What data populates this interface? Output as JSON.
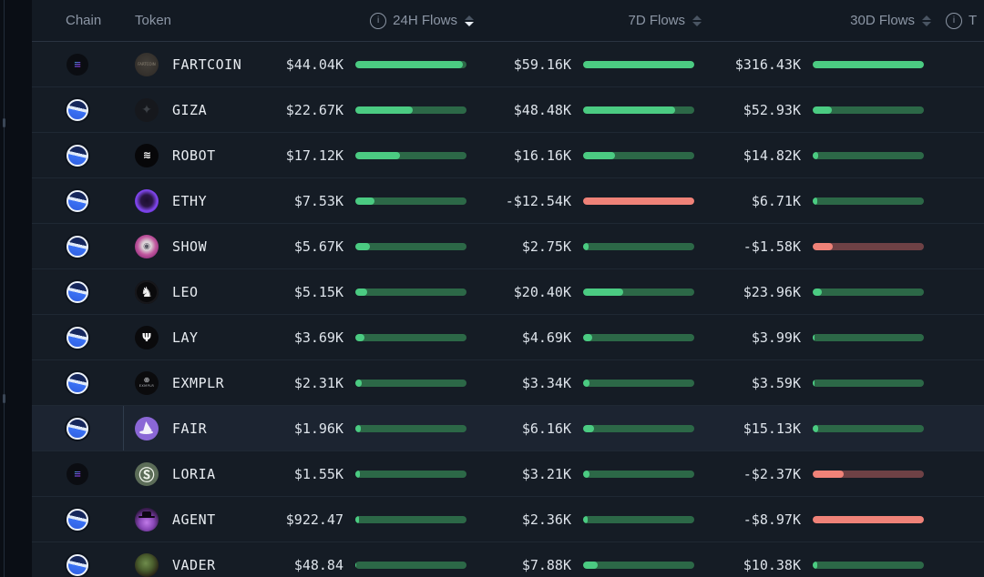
{
  "header": {
    "chain": "Chain",
    "token": "Token",
    "h24": "24H Flows",
    "d7": "7D Flows",
    "d30": "30D Flows",
    "right_overflow": "T"
  },
  "colors": {
    "positive_fill": "#4bcb82",
    "positive_track": "#2c6847",
    "negative_fill": "#ef8278",
    "negative_track": "#6e4145",
    "row_bg": "#151c25",
    "row_highlight_bg": "#1c2431",
    "header_text": "#8c96a5",
    "value_text": "#dde3ea"
  },
  "icons": {
    "h24_info": "info-icon",
    "right_info": "info-icon",
    "sort_24h_state": "desc-active",
    "sort_7d_state": "inactive",
    "sort_30d_state": "inactive"
  },
  "rows": [
    {
      "chain": "solana",
      "token": "FARTCOIN",
      "icon_cls": "fartcoin",
      "glyph": "FARTCOIN",
      "sub": "",
      "h24": {
        "v": "$44.04K",
        "pct": 97,
        "neg": false
      },
      "d7": {
        "v": "$59.16K",
        "pct": 100,
        "neg": false
      },
      "d30": {
        "v": "$316.43K",
        "pct": 100,
        "neg": false
      },
      "hl": false
    },
    {
      "chain": "base",
      "token": "GIZA",
      "icon_cls": "giza",
      "glyph": "✦",
      "sub": "",
      "h24": {
        "v": "$22.67K",
        "pct": 52,
        "neg": false
      },
      "d7": {
        "v": "$48.48K",
        "pct": 83,
        "neg": false
      },
      "d30": {
        "v": "$52.93K",
        "pct": 17,
        "neg": false
      },
      "hl": false
    },
    {
      "chain": "base",
      "token": "ROBOT",
      "icon_cls": "robot",
      "glyph": "≋",
      "sub": "",
      "h24": {
        "v": "$17.12K",
        "pct": 40,
        "neg": false
      },
      "d7": {
        "v": "$16.16K",
        "pct": 29,
        "neg": false
      },
      "d30": {
        "v": "$14.82K",
        "pct": 5,
        "neg": false
      },
      "hl": false
    },
    {
      "chain": "base",
      "token": "ETHY",
      "icon_cls": "ethy",
      "glyph": "",
      "sub": "",
      "h24": {
        "v": "$7.53K",
        "pct": 17,
        "neg": false
      },
      "d7": {
        "v": "-$12.54K",
        "pct": 100,
        "neg": true
      },
      "d30": {
        "v": "$6.71K",
        "pct": 4,
        "neg": false
      },
      "hl": false
    },
    {
      "chain": "base",
      "token": "SHOW",
      "icon_cls": "show",
      "glyph": "◉",
      "sub": "",
      "h24": {
        "v": "$5.67K",
        "pct": 13,
        "neg": false
      },
      "d7": {
        "v": "$2.75K",
        "pct": 5,
        "neg": false
      },
      "d30": {
        "v": "-$1.58K",
        "pct": 18,
        "neg": true
      },
      "hl": false
    },
    {
      "chain": "base",
      "token": "LEO",
      "icon_cls": "leo",
      "glyph": "♞",
      "sub": "",
      "h24": {
        "v": "$5.15K",
        "pct": 11,
        "neg": false
      },
      "d7": {
        "v": "$20.40K",
        "pct": 36,
        "neg": false
      },
      "d30": {
        "v": "$23.96K",
        "pct": 8,
        "neg": false
      },
      "hl": false
    },
    {
      "chain": "base",
      "token": "LAY",
      "icon_cls": "lay",
      "glyph": "Ψ",
      "sub": "",
      "h24": {
        "v": "$3.69K",
        "pct": 8,
        "neg": false
      },
      "d7": {
        "v": "$4.69K",
        "pct": 8,
        "neg": false
      },
      "d30": {
        "v": "$3.99K",
        "pct": 2,
        "neg": false
      },
      "hl": false
    },
    {
      "chain": "base",
      "token": "EXMPLR",
      "icon_cls": "exmplr",
      "glyph": "⊕",
      "sub": "EXMPLR",
      "h24": {
        "v": "$2.31K",
        "pct": 6,
        "neg": false
      },
      "d7": {
        "v": "$3.34K",
        "pct": 6,
        "neg": false
      },
      "d30": {
        "v": "$3.59K",
        "pct": 2,
        "neg": false
      },
      "hl": false
    },
    {
      "chain": "base",
      "token": "FAIR",
      "icon_cls": "fair",
      "glyph": "",
      "sub": "",
      "h24": {
        "v": "$1.96K",
        "pct": 5,
        "neg": false
      },
      "d7": {
        "v": "$6.16K",
        "pct": 10,
        "neg": false
      },
      "d30": {
        "v": "$15.13K",
        "pct": 5,
        "neg": false
      },
      "hl": true
    },
    {
      "chain": "solana",
      "token": "LORIA",
      "icon_cls": "loria",
      "glyph": "Ⓢ",
      "sub": "",
      "h24": {
        "v": "$1.55K",
        "pct": 4,
        "neg": false
      },
      "d7": {
        "v": "$3.21K",
        "pct": 6,
        "neg": false
      },
      "d30": {
        "v": "-$2.37K",
        "pct": 28,
        "neg": true
      },
      "hl": false
    },
    {
      "chain": "base",
      "token": "AGENT",
      "icon_cls": "agent",
      "glyph": "",
      "sub": "",
      "h24": {
        "v": "$922.47",
        "pct": 3,
        "neg": false
      },
      "d7": {
        "v": "$2.36K",
        "pct": 4,
        "neg": false
      },
      "d30": {
        "v": "-$8.97K",
        "pct": 100,
        "neg": true
      },
      "hl": false
    },
    {
      "chain": "base",
      "token": "VADER",
      "icon_cls": "vader",
      "glyph": "",
      "sub": "",
      "h24": {
        "v": "$48.84",
        "pct": 1,
        "neg": false
      },
      "d7": {
        "v": "$7.88K",
        "pct": 13,
        "neg": false
      },
      "d30": {
        "v": "$10.38K",
        "pct": 4,
        "neg": false
      },
      "hl": false
    }
  ]
}
